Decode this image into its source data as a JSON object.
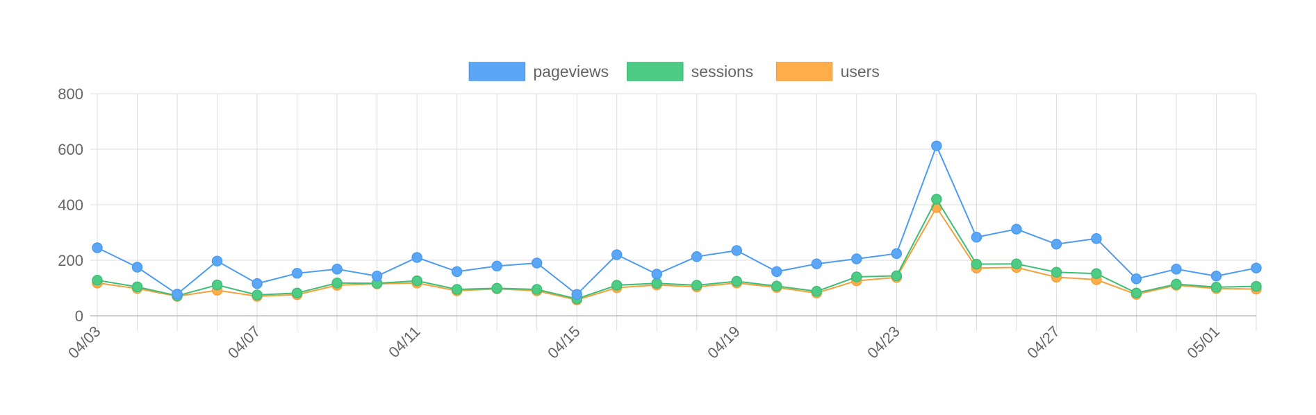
{
  "chart_data": {
    "type": "line",
    "title": "",
    "xlabel": "",
    "ylabel": "",
    "ylim": [
      0,
      800
    ],
    "y_ticks": [
      0,
      200,
      400,
      600,
      800
    ],
    "grid": true,
    "legend_position": "top",
    "x": [
      "04/03",
      "04/04",
      "04/05",
      "04/06",
      "04/07",
      "04/08",
      "04/09",
      "04/10",
      "04/11",
      "04/12",
      "04/13",
      "04/14",
      "04/15",
      "04/16",
      "04/17",
      "04/18",
      "04/19",
      "04/20",
      "04/21",
      "04/22",
      "04/23",
      "04/24",
      "04/25",
      "04/26",
      "04/27",
      "04/28",
      "04/29",
      "04/30",
      "05/01",
      "05/02"
    ],
    "x_tick_labels": [
      "04/03",
      "04/07",
      "04/11",
      "04/15",
      "04/19",
      "04/23",
      "04/27",
      "05/01"
    ],
    "series": [
      {
        "name": "pageviews",
        "color": "#4b9bf2",
        "fill": "#5ba6f5",
        "values": [
          245,
          175,
          78,
          197,
          116,
          153,
          168,
          143,
          210,
          159,
          179,
          190,
          77,
          220,
          150,
          213,
          235,
          159,
          187,
          205,
          224,
          612,
          283,
          312,
          258,
          278,
          133,
          168,
          143,
          172
        ]
      },
      {
        "name": "sessions",
        "color": "#3dbe76",
        "fill": "#4ecb85",
        "values": [
          128,
          104,
          72,
          111,
          75,
          82,
          118,
          117,
          126,
          95,
          99,
          95,
          61,
          110,
          117,
          110,
          124,
          107,
          88,
          140,
          144,
          420,
          186,
          187,
          157,
          152,
          82,
          114,
          103,
          106
        ]
      },
      {
        "name": "users",
        "color": "#f5a03a",
        "fill": "#ffad4a",
        "values": [
          118,
          98,
          70,
          92,
          70,
          76,
          110,
          115,
          118,
          90,
          97,
          90,
          57,
          101,
          111,
          104,
          118,
          102,
          82,
          126,
          138,
          390,
          172,
          174,
          139,
          130,
          77,
          110,
          98,
          96
        ]
      }
    ]
  }
}
